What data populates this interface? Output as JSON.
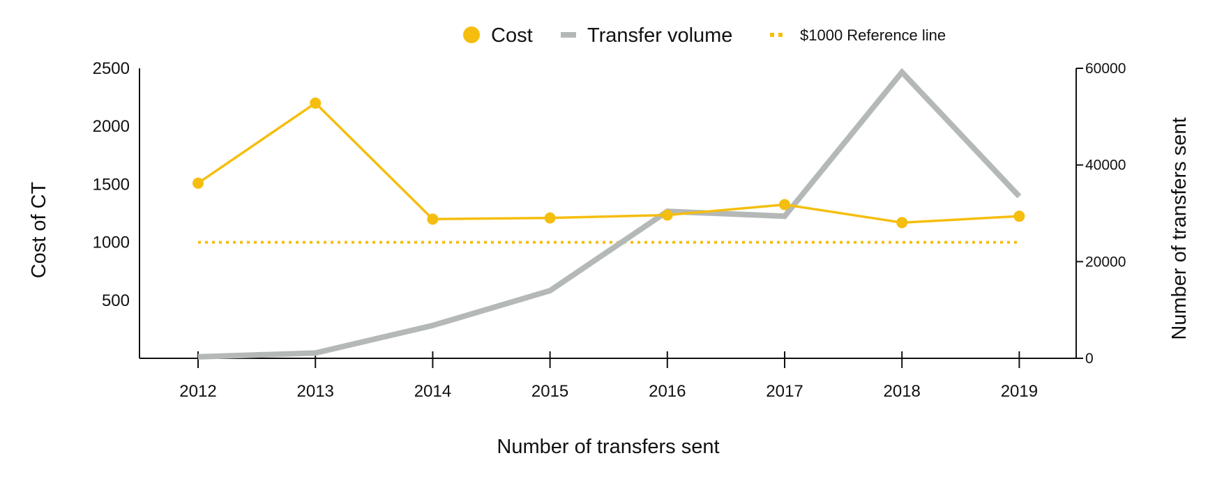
{
  "chart_data": {
    "type": "line",
    "x": [
      2012,
      2013,
      2014,
      2015,
      2016,
      2017,
      2018,
      2019
    ],
    "categories": [
      "2012",
      "2013",
      "2014",
      "2015",
      "2016",
      "2017",
      "2018",
      "2019"
    ],
    "xlabel": "Number of transfers sent",
    "ylabel_left": "Cost of CT",
    "ylabel_right": "Number of transfers sent",
    "ylim_left": [
      0,
      2500
    ],
    "ylim_right": [
      0,
      60000
    ],
    "yticks_left": [
      "500",
      "1000",
      "1500",
      "2000",
      "2500"
    ],
    "yticks_right": [
      "0",
      "20000",
      "40000",
      "60000"
    ],
    "grid": false,
    "legend_position": "top",
    "series": [
      {
        "name": "Cost",
        "axis": "left",
        "style": "line-with-markers",
        "color": "#F5BE0F",
        "values": [
          1510,
          2200,
          1200,
          1210,
          1235,
          1325,
          1170,
          1225
        ]
      },
      {
        "name": "Transfer volume",
        "axis": "right",
        "style": "thick-line",
        "color": "#B4B9B7",
        "values": [
          300,
          1100,
          6800,
          14000,
          30400,
          29400,
          59200,
          33500
        ]
      },
      {
        "name": "$1000 Reference line",
        "axis": "left",
        "style": "dotted-line",
        "color": "#F5BE0F",
        "values": [
          1000,
          1000,
          1000,
          1000,
          1000,
          1000,
          1000,
          1000
        ]
      }
    ]
  }
}
